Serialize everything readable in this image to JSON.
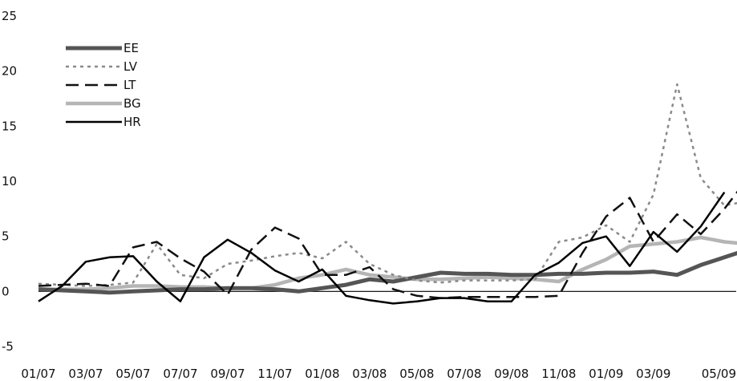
{
  "chart_data": {
    "type": "line",
    "title": "",
    "xlabel": "",
    "ylabel": "",
    "ylim": [
      -5,
      25
    ],
    "yticks": [
      -5,
      0,
      5,
      10,
      15,
      20,
      25
    ],
    "grid": false,
    "legend": "top-left",
    "x_tick_labels": [
      "01/07",
      "03/07",
      "05/07",
      "07/07",
      "09/07",
      "11/07",
      "01/08",
      "03/08",
      "05/08",
      "07/08",
      "09/08",
      "11/08",
      "01/09",
      "03/09",
      "05/09"
    ],
    "x_month_index": [
      0,
      2,
      4,
      6,
      8,
      10,
      12,
      14,
      16,
      18,
      20,
      22,
      24,
      26,
      28
    ],
    "series": [
      {
        "name": "EE",
        "color": "#555555",
        "style": "solid-thick",
        "values": [
          0.2,
          0.1,
          0.0,
          -0.1,
          0.0,
          0.1,
          0.2,
          0.2,
          0.3,
          0.3,
          0.2,
          0.0,
          0.3,
          0.6,
          1.1,
          0.9,
          1.3,
          1.7,
          1.6,
          1.6,
          1.5,
          1.5,
          1.6,
          1.6,
          1.7,
          1.7,
          1.8,
          1.5,
          2.4,
          3.1,
          3.8,
          3.3,
          3.7,
          3.5,
          3.4,
          3.3
        ]
      },
      {
        "name": "LV",
        "color": "#8a8a8a",
        "style": "dotted",
        "values": [
          0.7,
          0.6,
          0.5,
          0.6,
          0.8,
          4.3,
          1.5,
          1.2,
          2.5,
          2.8,
          3.2,
          3.5,
          3.0,
          4.5,
          2.5,
          1.5,
          1.0,
          0.8,
          1.0,
          1.0,
          1.0,
          1.1,
          4.5,
          4.9,
          6.0,
          4.5,
          8.8,
          18.8,
          10.3,
          7.8,
          8.2
        ]
      },
      {
        "name": "LT",
        "color": "#111111",
        "style": "dashed",
        "values": [
          0.5,
          0.6,
          0.7,
          0.5,
          4.0,
          4.5,
          3.0,
          1.8,
          -0.3,
          3.8,
          5.8,
          4.8,
          1.5,
          1.5,
          2.2,
          0.2,
          -0.4,
          -0.6,
          -0.5,
          -0.5,
          -0.5,
          -0.5,
          -0.4,
          3.5,
          6.8,
          8.5,
          4.5,
          7.0,
          5.2,
          7.5,
          10.3
        ]
      },
      {
        "name": "BG",
        "color": "#b5b5b5",
        "style": "solid-thick",
        "values": [
          0.2,
          0.2,
          0.2,
          0.3,
          0.5,
          0.5,
          0.4,
          0.4,
          0.3,
          0.3,
          0.6,
          1.2,
          1.5,
          2.0,
          1.5,
          1.3,
          1.1,
          1.1,
          1.2,
          1.3,
          1.2,
          1.1,
          0.9,
          2.0,
          2.9,
          4.1,
          4.3,
          4.5,
          4.9,
          4.5,
          4.3
        ]
      },
      {
        "name": "HR",
        "color": "#000000",
        "style": "solid",
        "values": [
          -0.9,
          0.5,
          2.7,
          3.1,
          3.2,
          0.9,
          -0.9,
          3.1,
          4.7,
          3.5,
          1.9,
          0.9,
          2.0,
          -0.4,
          -0.8,
          -1.1,
          -0.9,
          -0.6,
          -0.6,
          -0.9,
          -0.9,
          1.5,
          2.6,
          4.4,
          5.0,
          2.3,
          5.4,
          3.6,
          5.9,
          9.0
        ]
      }
    ]
  }
}
